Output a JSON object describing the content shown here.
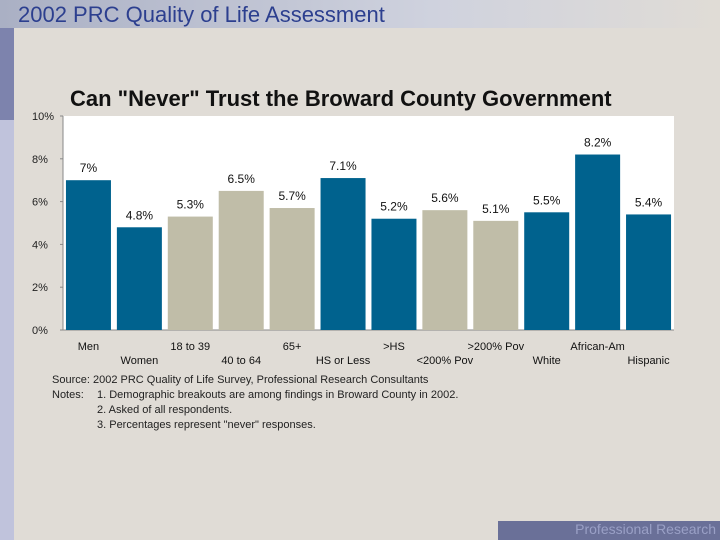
{
  "slide": {
    "title": "2002 PRC Quality of Life Assessment"
  },
  "footer": {
    "brand": "Professional Research Consultants"
  },
  "notes": {
    "source": "Source: 2002 PRC Quality of Life Survey, Professional Research Consultants",
    "notes_label": "Notes:",
    "note1": "1. Demographic breakouts are among findings in Broward County in 2002.",
    "note2": "2. Asked of all respondents.",
    "note3": "3. Percentages represent \"never\" responses."
  },
  "colors": {
    "highlight_bar": "#00628e",
    "gray_bar": "#c0bda8",
    "plot_background": "#ffffff",
    "title_color": "#2c3f8f"
  },
  "chart_data": {
    "type": "bar",
    "title": "Can \"Never\" Trust the Broward County Government",
    "categories": [
      "Men",
      "Women",
      "18 to 39",
      "40 to 64",
      "65+",
      "HS or Less",
      ">HS",
      "<200% Pov",
      ">200% Pov",
      "White",
      "African-Am",
      "Hispanic"
    ],
    "values": [
      7.0,
      4.8,
      5.3,
      6.5,
      5.7,
      7.1,
      5.2,
      5.6,
      5.1,
      5.5,
      8.2,
      5.4
    ],
    "value_labels": [
      "7%",
      "4.8%",
      "5.3%",
      "6.5%",
      "5.7%",
      "7.1%",
      "5.2%",
      "5.6%",
      "5.1%",
      "5.5%",
      "8.2%",
      "5.4%"
    ],
    "bar_colors": [
      "highlight",
      "highlight",
      "gray",
      "gray",
      "gray",
      "highlight",
      "highlight",
      "gray",
      "gray",
      "highlight",
      "highlight",
      "highlight"
    ],
    "ylim": [
      0,
      10
    ],
    "yticks": [
      "0%",
      "2%",
      "4%",
      "6%",
      "8%",
      "10%"
    ],
    "ytick_values": [
      0,
      2,
      4,
      6,
      8,
      10
    ],
    "grid": false,
    "legend": "none"
  }
}
